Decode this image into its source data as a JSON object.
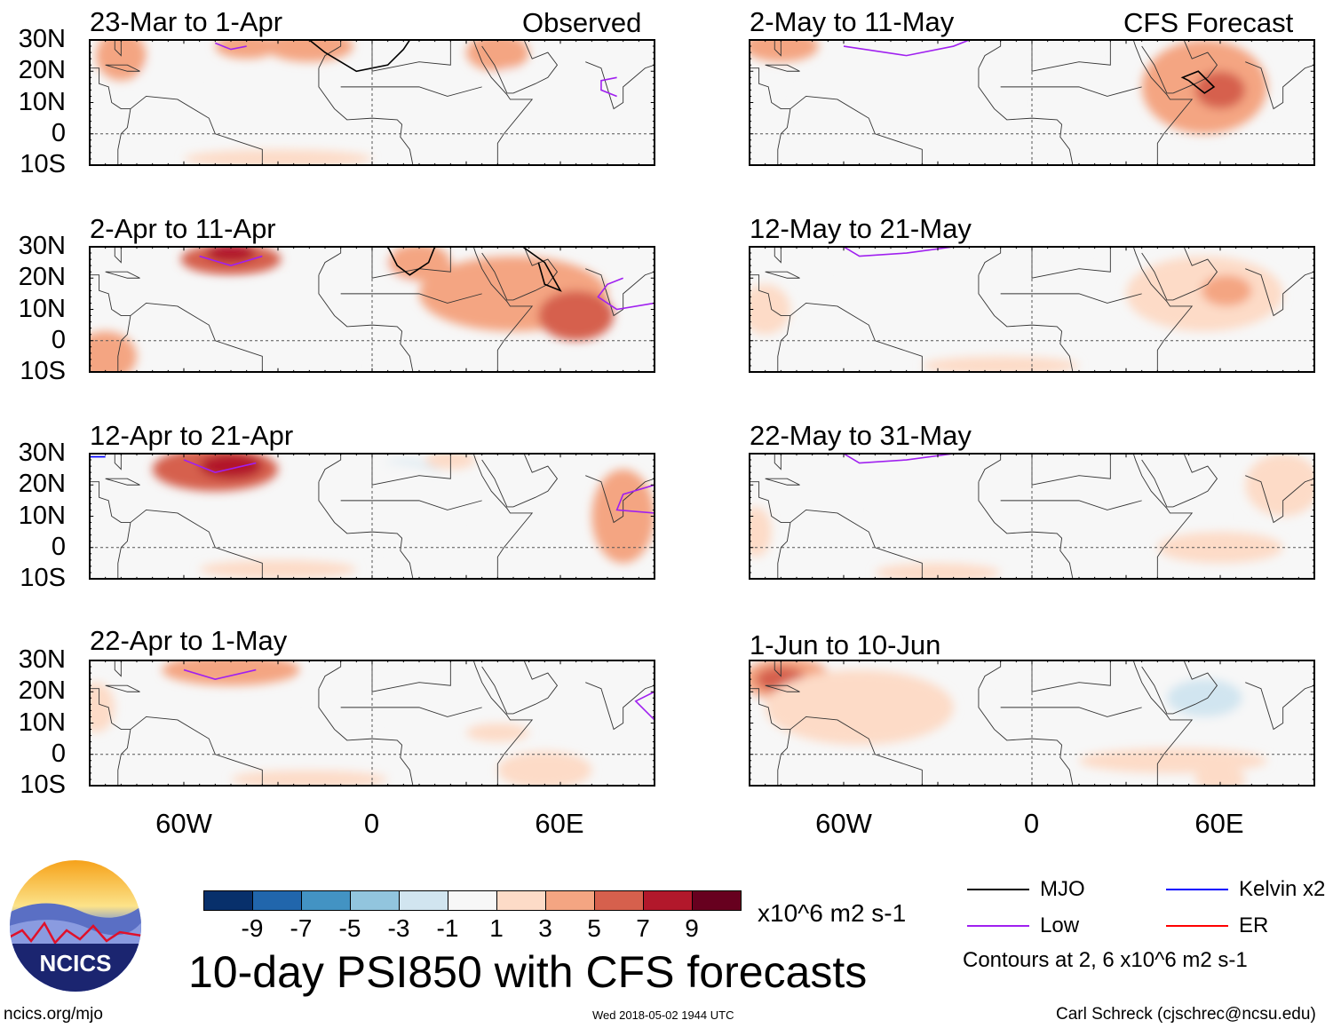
{
  "header": {
    "observed_label": "Observed",
    "forecast_label": "CFS Forecast"
  },
  "lat_labels": [
    "30N",
    "20N",
    "10N",
    "0",
    "10S"
  ],
  "lon_labels": [
    "60W",
    "0",
    "60E"
  ],
  "panels": [
    {
      "title": "23-Mar to 1-Apr",
      "blobs": [
        [
          -20,
          28,
          14,
          5,
          3
        ],
        [
          -40,
          28,
          10,
          4,
          3
        ],
        [
          40,
          26,
          10,
          6,
          3
        ],
        [
          -65,
          18,
          8,
          7,
          -1
        ],
        [
          45,
          15,
          8,
          6,
          -1
        ],
        [
          75,
          5,
          14,
          8,
          -1
        ],
        [
          -30,
          -8,
          30,
          3,
          1
        ],
        [
          -80,
          25,
          8,
          8,
          3
        ]
      ],
      "contours": [
        {
          "c": "#a020f0",
          "p": [
            [
              -50,
              29
            ],
            [
              -45,
              27
            ],
            [
              -40,
              28
            ]
          ]
        },
        {
          "c": "#a020f0",
          "p": [
            [
              78,
              12
            ],
            [
              73,
              14
            ],
            [
              73,
              17
            ],
            [
              78,
              18
            ]
          ]
        },
        {
          "c": "#000",
          "p": [
            [
              -20,
              30
            ],
            [
              -15,
              26
            ],
            [
              -5,
              20
            ],
            [
              5,
              22
            ],
            [
              10,
              27
            ],
            [
              12,
              30
            ]
          ]
        }
      ]
    },
    {
      "title": "2-Apr to 11-Apr",
      "blobs": [
        [
          -45,
          26,
          16,
          5,
          5
        ],
        [
          -45,
          28,
          8,
          3,
          7
        ],
        [
          45,
          15,
          30,
          12,
          3
        ],
        [
          65,
          8,
          12,
          8,
          5
        ],
        [
          -40,
          10,
          40,
          8,
          -1
        ],
        [
          -5,
          20,
          18,
          10,
          -1
        ],
        [
          15,
          25,
          10,
          6,
          3
        ],
        [
          40,
          -8,
          40,
          4,
          -1
        ],
        [
          -85,
          -5,
          10,
          8,
          3
        ]
      ],
      "contours": [
        {
          "c": "#a020f0",
          "p": [
            [
              -55,
              27
            ],
            [
              -45,
              24
            ],
            [
              -35,
              27
            ]
          ]
        },
        {
          "c": "#a020f0",
          "p": [
            [
              80,
              20
            ],
            [
              75,
              18
            ],
            [
              72,
              14
            ],
            [
              78,
              10
            ],
            [
              90,
              12
            ]
          ]
        },
        {
          "c": "#000",
          "p": [
            [
              5,
              30
            ],
            [
              8,
              24
            ],
            [
              12,
              21
            ],
            [
              18,
              25
            ],
            [
              20,
              30
            ]
          ]
        },
        {
          "c": "#000",
          "p": [
            [
              48,
              30
            ],
            [
              55,
              25
            ],
            [
              60,
              16
            ],
            [
              55,
              18
            ],
            [
              53,
              25
            ]
          ]
        }
      ]
    },
    {
      "title": "12-Apr to 21-Apr",
      "blobs": [
        [
          -50,
          25,
          20,
          7,
          5
        ],
        [
          -45,
          26,
          10,
          4,
          7
        ],
        [
          10,
          20,
          14,
          8,
          -3
        ],
        [
          5,
          15,
          25,
          12,
          -1
        ],
        [
          -10,
          5,
          30,
          5,
          -1
        ],
        [
          45,
          -5,
          25,
          6,
          -1
        ],
        [
          80,
          10,
          10,
          15,
          3
        ],
        [
          -30,
          -7,
          25,
          3,
          1
        ],
        [
          25,
          28,
          8,
          3,
          1
        ]
      ],
      "contours": [
        {
          "c": "#a020f0",
          "p": [
            [
              -60,
              28
            ],
            [
              -50,
              24
            ],
            [
              -37,
              27
            ]
          ]
        },
        {
          "c": "#a020f0",
          "p": [
            [
              90,
              20
            ],
            [
              80,
              17
            ],
            [
              78,
              12
            ],
            [
              90,
              11
            ]
          ]
        },
        {
          "c": "#0000ff",
          "p": [
            [
              -90,
              29
            ],
            [
              -85,
              29
            ]
          ]
        }
      ]
    },
    {
      "title": "22-Apr to 1-May",
      "blobs": [
        [
          -45,
          27,
          22,
          5,
          3
        ],
        [
          0,
          22,
          22,
          10,
          -1
        ],
        [
          30,
          20,
          20,
          10,
          -1
        ],
        [
          -10,
          -3,
          20,
          5,
          -1
        ],
        [
          -20,
          -8,
          25,
          3,
          1
        ],
        [
          55,
          -5,
          15,
          6,
          1
        ],
        [
          40,
          7,
          10,
          3,
          1
        ],
        [
          -88,
          15,
          6,
          8,
          1
        ]
      ],
      "contours": [
        {
          "c": "#a020f0",
          "p": [
            [
              -60,
              27
            ],
            [
              -50,
              24
            ],
            [
              -37,
              27
            ]
          ]
        },
        {
          "c": "#a020f0",
          "p": [
            [
              90,
              20
            ],
            [
              84,
              17
            ],
            [
              90,
              11
            ]
          ]
        }
      ]
    },
    {
      "title": "2-May to 11-May",
      "blobs": [
        [
          -5,
          25,
          25,
          8,
          -1
        ],
        [
          -40,
          10,
          35,
          12,
          -1
        ],
        [
          55,
          15,
          20,
          15,
          3
        ],
        [
          60,
          14,
          8,
          6,
          5
        ],
        [
          -80,
          28,
          12,
          5,
          3
        ],
        [
          80,
          -5,
          15,
          5,
          -1
        ],
        [
          -10,
          -8,
          30,
          3,
          -1
        ]
      ],
      "contours": [
        {
          "c": "#a020f0",
          "p": [
            [
              -60,
              28
            ],
            [
              -40,
              25
            ],
            [
              -25,
              28
            ],
            [
              -20,
              30
            ]
          ]
        },
        {
          "c": "#000",
          "p": [
            [
              50,
              17
            ],
            [
              55,
              13
            ],
            [
              58,
              15
            ],
            [
              53,
              20
            ],
            [
              48,
              18
            ],
            [
              50,
              17
            ]
          ]
        }
      ]
    },
    {
      "title": "12-May to 21-May",
      "blobs": [
        [
          -30,
          15,
          20,
          8,
          -3
        ],
        [
          -20,
          18,
          40,
          14,
          -1
        ],
        [
          55,
          15,
          25,
          12,
          1
        ],
        [
          62,
          16,
          8,
          5,
          3
        ],
        [
          -10,
          -8,
          25,
          3,
          1
        ],
        [
          75,
          -3,
          20,
          5,
          -1
        ],
        [
          -85,
          10,
          8,
          8,
          1
        ]
      ],
      "contours": [
        {
          "c": "#a020f0",
          "p": [
            [
              -60,
              30
            ],
            [
              -55,
              27
            ],
            [
              -40,
              28
            ],
            [
              -25,
              30
            ]
          ]
        }
      ]
    },
    {
      "title": "22-May to 31-May",
      "blobs": [
        [
          -20,
          12,
          30,
          14,
          -1
        ],
        [
          0,
          -5,
          20,
          5,
          -1
        ],
        [
          80,
          20,
          12,
          10,
          1
        ],
        [
          60,
          0,
          20,
          5,
          1
        ],
        [
          -88,
          5,
          5,
          8,
          1
        ],
        [
          -30,
          -8,
          20,
          3,
          1
        ],
        [
          55,
          10,
          6,
          3,
          -1
        ]
      ],
      "contours": [
        {
          "c": "#a020f0",
          "p": [
            [
              -60,
              30
            ],
            [
              -55,
              27
            ],
            [
              -40,
              28
            ],
            [
              -25,
              30
            ]
          ]
        }
      ]
    },
    {
      "title": "1-Jun to 10-Jun",
      "blobs": [
        [
          -78,
          24,
          14,
          7,
          3
        ],
        [
          -80,
          24,
          8,
          4,
          5
        ],
        [
          -55,
          15,
          30,
          12,
          1
        ],
        [
          30,
          15,
          40,
          12,
          -1
        ],
        [
          55,
          18,
          12,
          6,
          -3
        ],
        [
          45,
          -2,
          30,
          4,
          1
        ],
        [
          60,
          -8,
          8,
          4,
          1
        ],
        [
          -60,
          -5,
          20,
          6,
          -1
        ]
      ],
      "contours": []
    }
  ],
  "colorbar": {
    "colors": [
      "#08306b",
      "#2166ac",
      "#4393c3",
      "#92c5de",
      "#d1e5f0",
      "#f7f7f7",
      "#fddbc7",
      "#f4a582",
      "#d6604d",
      "#b2182b",
      "#67001f"
    ],
    "ticks": [
      "-9",
      "-7",
      "-5",
      "-3",
      "-1",
      "1",
      "3",
      "5",
      "7",
      "9"
    ],
    "units": "x10^6 m2 s-1"
  },
  "legend": {
    "items": [
      {
        "label": "MJO",
        "color": "#000000"
      },
      {
        "label": "Kelvin x2",
        "color": "#0000ff"
      },
      {
        "label": "Low",
        "color": "#a020f0"
      },
      {
        "label": "ER",
        "color": "#ff0000"
      }
    ],
    "contour_note": "Contours at 2, 6 x10^6 m2 s-1"
  },
  "footer": {
    "main_title": "10-day PSI850 with CFS forecasts",
    "website": "ncics.org/mjo",
    "timestamp": "Wed 2018-05-02 1944 UTC",
    "author": "Carl Schreck (cjschrec@ncsu.edu)",
    "logo_text": "NCICS"
  }
}
